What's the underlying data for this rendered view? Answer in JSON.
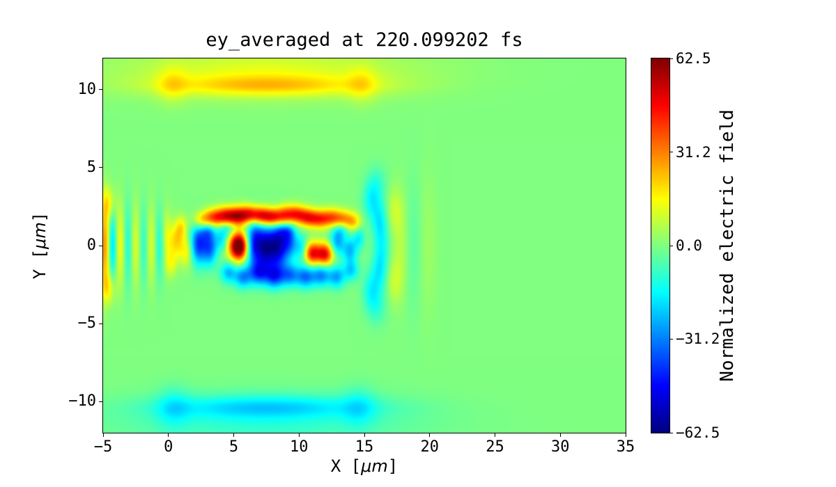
{
  "figure": {
    "title": "ey_averaged at 220.099202 fs",
    "x_label": {
      "prefix": "X [",
      "unit": "μm",
      "suffix": "]"
    },
    "y_label": {
      "prefix": "Y [",
      "unit": "μm",
      "suffix": "]"
    },
    "colorbar_label": "Normalized electric field"
  },
  "chart_data": {
    "type": "heatmap",
    "title": "ey_averaged at 220.099202 fs",
    "xlabel": "X [μm]",
    "ylabel": "Y [μm]",
    "x_range": [
      -5,
      35
    ],
    "y_range": [
      -12,
      12
    ],
    "x_ticks": [
      {
        "v": -5,
        "label": "−5"
      },
      {
        "v": 0,
        "label": "0"
      },
      {
        "v": 5,
        "label": "5"
      },
      {
        "v": 10,
        "label": "10"
      },
      {
        "v": 15,
        "label": "15"
      },
      {
        "v": 20,
        "label": "20"
      },
      {
        "v": 25,
        "label": "25"
      },
      {
        "v": 30,
        "label": "30"
      },
      {
        "v": 35,
        "label": "35"
      }
    ],
    "y_ticks": [
      {
        "v": 10,
        "label": "10"
      },
      {
        "v": 5,
        "label": "5"
      },
      {
        "v": 0,
        "label": "0"
      },
      {
        "v": -5,
        "label": "−5"
      },
      {
        "v": -10,
        "label": "−10"
      }
    ],
    "colormap": "jet",
    "colorbar": {
      "label": "Normalized electric field",
      "vmin": -62.5,
      "vmax": 62.5,
      "ticks": [
        {
          "v": 62.5,
          "label": "62.5"
        },
        {
          "v": 31.2,
          "label": "31.2"
        },
        {
          "v": 0,
          "label": "0.0"
        },
        {
          "v": -31.2,
          "label": "−31.2"
        },
        {
          "v": -62.5,
          "label": "−62.5"
        }
      ]
    },
    "background_value": 0,
    "field_description": "Laser pulse Ey field: strong oscillating lobes around y=0 for x≈0–15, faint vertical fringes at x≈−5–0, curved wavefronts at x≈15–20, thin positive band near y≈+10.3 and negative band near y≈−10.4. Encoded as gaussian features.",
    "feature_format": [
      "x_um",
      "y_um",
      "sigma_x_um",
      "sigma_y_um",
      "amplitude"
    ],
    "features": [
      [
        2.6,
        1.6,
        0.5,
        0.4,
        26
      ],
      [
        3.5,
        1.8,
        0.5,
        0.4,
        34
      ],
      [
        4.4,
        1.9,
        0.5,
        0.4,
        40
      ],
      [
        5.3,
        1.9,
        0.5,
        0.4,
        44
      ],
      [
        6.2,
        2.0,
        0.5,
        0.4,
        42
      ],
      [
        7.1,
        1.9,
        0.5,
        0.4,
        45
      ],
      [
        8.0,
        1.8,
        0.5,
        0.4,
        46
      ],
      [
        8.9,
        1.9,
        0.5,
        0.45,
        40
      ],
      [
        9.8,
        2.0,
        0.5,
        0.4,
        36
      ],
      [
        10.7,
        1.8,
        0.5,
        0.4,
        38
      ],
      [
        11.6,
        1.7,
        0.5,
        0.4,
        34
      ],
      [
        12.5,
        1.8,
        0.5,
        0.4,
        30
      ],
      [
        13.4,
        1.7,
        0.5,
        0.4,
        26
      ],
      [
        14.2,
        1.5,
        0.4,
        0.4,
        20
      ],
      [
        3.0,
        1.0,
        0.4,
        0.4,
        -18
      ],
      [
        4.6,
        1.1,
        0.4,
        0.35,
        -16
      ],
      [
        9.0,
        1.0,
        0.4,
        0.35,
        -14
      ],
      [
        13.2,
        1.0,
        0.4,
        0.35,
        -14
      ],
      [
        2.3,
        0.1,
        0.45,
        0.9,
        -40
      ],
      [
        3.2,
        -0.1,
        0.4,
        0.8,
        -34
      ],
      [
        4.1,
        0.4,
        0.35,
        0.6,
        -22
      ],
      [
        5.4,
        -0.05,
        0.45,
        0.55,
        62
      ],
      [
        5.4,
        0.0,
        0.95,
        0.95,
        18
      ],
      [
        6.6,
        0.1,
        0.5,
        1.1,
        -52
      ],
      [
        7.5,
        -0.2,
        0.45,
        1.0,
        -44
      ],
      [
        8.4,
        0.0,
        0.5,
        1.1,
        -52
      ],
      [
        9.3,
        0.3,
        0.4,
        0.8,
        -30
      ],
      [
        10.2,
        -0.2,
        0.35,
        0.6,
        -20
      ],
      [
        11.0,
        -0.5,
        0.45,
        0.5,
        46
      ],
      [
        12.0,
        -0.55,
        0.45,
        0.5,
        48
      ],
      [
        12.9,
        0.2,
        0.4,
        0.6,
        -26
      ],
      [
        13.9,
        -0.3,
        0.4,
        0.6,
        -24
      ],
      [
        14.6,
        0.5,
        0.3,
        0.5,
        -16
      ],
      [
        4.6,
        -1.7,
        0.45,
        0.5,
        -26
      ],
      [
        5.7,
        -2.0,
        0.45,
        0.5,
        -30
      ],
      [
        6.9,
        -1.8,
        0.5,
        0.5,
        -32
      ],
      [
        8.1,
        -2.0,
        0.5,
        0.5,
        -34
      ],
      [
        9.3,
        -1.9,
        0.5,
        0.5,
        -30
      ],
      [
        10.5,
        -2.0,
        0.5,
        0.5,
        -32
      ],
      [
        11.7,
        -1.9,
        0.5,
        0.5,
        -30
      ],
      [
        12.9,
        -2.0,
        0.45,
        0.5,
        -26
      ],
      [
        14.0,
        -1.6,
        0.4,
        0.45,
        -20
      ],
      [
        0.6,
        0.3,
        0.4,
        0.8,
        20
      ],
      [
        1.4,
        -0.4,
        0.35,
        0.7,
        16
      ],
      [
        0.2,
        -1.2,
        0.3,
        0.6,
        12
      ],
      [
        1.0,
        1.2,
        0.3,
        0.5,
        14
      ],
      [
        -4.85,
        0.0,
        0.28,
        1.9,
        30
      ],
      [
        -4.6,
        2.7,
        0.35,
        0.7,
        14
      ],
      [
        -4.6,
        -2.7,
        0.35,
        0.7,
        14
      ],
      [
        -4.3,
        0.8,
        0.25,
        1.2,
        -14
      ],
      [
        -4.3,
        -0.8,
        0.25,
        1.2,
        -14
      ],
      [
        -3.7,
        0.0,
        0.25,
        1.8,
        16
      ],
      [
        -3.1,
        0.0,
        0.25,
        1.9,
        -12
      ],
      [
        -2.5,
        0.0,
        0.25,
        1.8,
        12
      ],
      [
        -1.9,
        0.0,
        0.25,
        1.8,
        -10
      ],
      [
        -1.3,
        0.0,
        0.25,
        1.7,
        12
      ],
      [
        -0.7,
        0.0,
        0.25,
        1.6,
        -12
      ],
      [
        -0.1,
        0.6,
        0.25,
        1.2,
        10
      ],
      [
        15.5,
        2.9,
        0.45,
        0.9,
        -14
      ],
      [
        15.5,
        -2.9,
        0.45,
        0.9,
        -14
      ],
      [
        16.1,
        1.6,
        0.4,
        1.0,
        -13
      ],
      [
        16.1,
        -1.6,
        0.4,
        1.0,
        -13
      ],
      [
        16.4,
        0.0,
        0.4,
        1.4,
        -11
      ],
      [
        17.3,
        2.3,
        0.4,
        1.0,
        8
      ],
      [
        17.3,
        -2.3,
        0.4,
        1.0,
        8
      ],
      [
        17.8,
        0.0,
        0.45,
        2.2,
        7
      ],
      [
        18.8,
        0.0,
        0.5,
        3.0,
        -5
      ],
      [
        16.0,
        4.0,
        0.5,
        0.8,
        -8
      ],
      [
        16.0,
        -4.0,
        0.5,
        0.8,
        -8
      ],
      [
        19.8,
        0.0,
        0.5,
        3.2,
        4
      ],
      [
        7.5,
        10.25,
        5.5,
        0.45,
        16
      ],
      [
        7.5,
        10.9,
        7.0,
        1.0,
        8
      ],
      [
        7.0,
        11.6,
        9.0,
        1.3,
        5
      ],
      [
        0.3,
        10.3,
        0.8,
        0.8,
        10
      ],
      [
        14.8,
        10.3,
        0.8,
        0.8,
        10
      ],
      [
        7.5,
        -10.35,
        5.5,
        0.5,
        -15
      ],
      [
        7.5,
        -11.0,
        7.0,
        1.1,
        -7
      ],
      [
        7.0,
        -11.7,
        9.0,
        1.3,
        -4
      ],
      [
        0.4,
        -10.4,
        0.9,
        0.9,
        -10
      ],
      [
        14.6,
        -10.4,
        0.9,
        0.9,
        -10
      ]
    ]
  }
}
